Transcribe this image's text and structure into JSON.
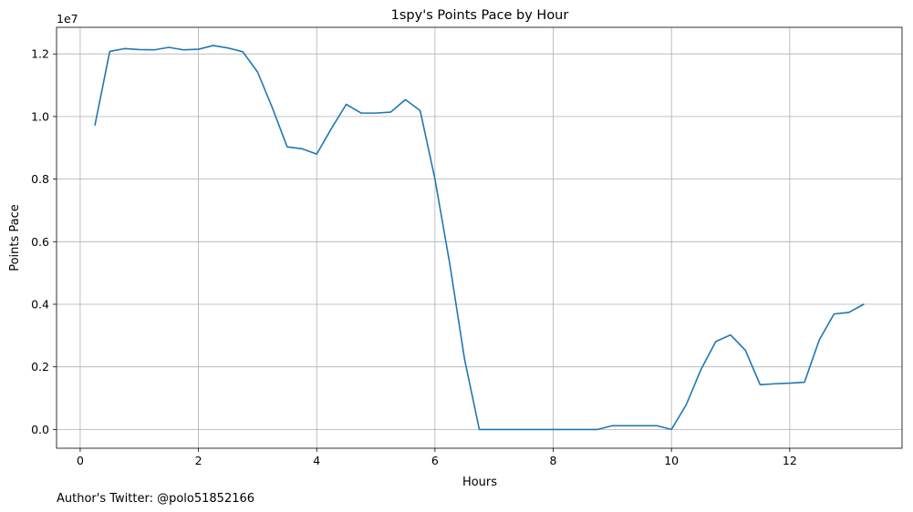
{
  "chart_data": {
    "type": "line",
    "title": "1spy's Points Pace by Hour",
    "xlabel": "Hours",
    "ylabel": "Points Pace",
    "y_offset_text": "1e7",
    "xlim": [
      -0.4,
      13.9
    ],
    "ylim": [
      -0.06,
      1.285
    ],
    "x_ticks": [
      0,
      2,
      4,
      6,
      8,
      10,
      12
    ],
    "x_tick_labels": [
      "0",
      "2",
      "4",
      "6",
      "8",
      "10",
      "12"
    ],
    "y_ticks": [
      0.0,
      0.2,
      0.4,
      0.6,
      0.8,
      1.0,
      1.2
    ],
    "y_tick_labels": [
      "0.0",
      "0.2",
      "0.4",
      "0.6",
      "0.8",
      "1.0",
      "1.2"
    ],
    "grid": true,
    "line_color": "#1f77b4",
    "series": [
      {
        "x": [
          0.25,
          0.5,
          0.75,
          1.0,
          1.25,
          1.5,
          1.75,
          2.0,
          2.25,
          2.5,
          2.75,
          3.0,
          3.25,
          3.5,
          3.75,
          4.0,
          4.25,
          4.5,
          4.75,
          5.0,
          5.25,
          5.5,
          5.75,
          6.0,
          6.25,
          6.5,
          6.75,
          7.0,
          7.25,
          7.5,
          7.75,
          8.0,
          8.25,
          8.5,
          8.75,
          9.0,
          9.25,
          9.5,
          9.75,
          10.0,
          10.25,
          10.5,
          10.75,
          11.0,
          11.25,
          11.5,
          11.75,
          12.0,
          12.25,
          12.5,
          12.75,
          13.0,
          13.25
        ],
        "y": [
          0.973,
          1.208,
          1.217,
          1.214,
          1.213,
          1.221,
          1.213,
          1.215,
          1.227,
          1.219,
          1.207,
          1.142,
          1.028,
          0.903,
          0.897,
          0.88,
          0.962,
          1.039,
          1.011,
          1.011,
          1.014,
          1.054,
          1.019,
          0.8,
          0.53,
          0.225,
          0.0,
          0.0,
          0.0,
          0.0,
          0.0,
          0.0,
          0.0,
          0.0,
          0.0,
          0.012,
          0.012,
          0.012,
          0.012,
          0.0,
          0.079,
          0.192,
          0.281,
          0.302,
          0.253,
          0.143,
          0.146,
          0.148,
          0.151,
          0.286,
          0.369,
          0.374,
          0.4
        ]
      }
    ]
  },
  "footer": {
    "author_text": "Author's Twitter: @polo51852166"
  }
}
